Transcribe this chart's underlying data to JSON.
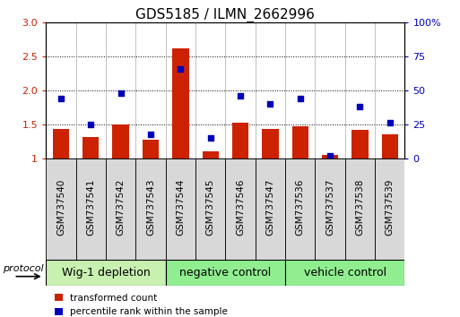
{
  "title": "GDS5185 / ILMN_2662996",
  "samples": [
    "GSM737540",
    "GSM737541",
    "GSM737542",
    "GSM737543",
    "GSM737544",
    "GSM737545",
    "GSM737546",
    "GSM737547",
    "GSM737536",
    "GSM737537",
    "GSM737538",
    "GSM737539"
  ],
  "transformed_count": [
    1.44,
    1.32,
    1.5,
    1.27,
    2.62,
    1.1,
    1.52,
    1.44,
    1.47,
    1.05,
    1.42,
    1.35
  ],
  "percentile_rank": [
    44,
    25,
    48,
    18,
    66,
    15,
    46,
    40,
    44,
    2,
    38,
    26
  ],
  "groups": [
    {
      "label": "Wig-1 depletion",
      "start": 0,
      "end": 4,
      "color": "#c8f0b0"
    },
    {
      "label": "negative control",
      "start": 4,
      "end": 8,
      "color": "#90ee90"
    },
    {
      "label": "vehicle control",
      "start": 8,
      "end": 12,
      "color": "#90ee90"
    }
  ],
  "ylim_left": [
    1.0,
    3.0
  ],
  "ylim_right": [
    0,
    100
  ],
  "yticks_left": [
    1.0,
    1.5,
    2.0,
    2.5,
    3.0
  ],
  "yticks_right": [
    0,
    25,
    50,
    75,
    100
  ],
  "bar_color": "#cc2200",
  "dot_color": "#0000bb",
  "bar_baseline": 1.0,
  "protocol_label": "protocol",
  "legend_bar_label": "transformed count",
  "legend_dot_label": "percentile rank within the sample",
  "title_fontsize": 11,
  "tick_fontsize": 8,
  "group_label_fontsize": 9,
  "sample_fontsize": 7.5,
  "bg_color": "#d8d8d8",
  "plot_bg": "#ffffff",
  "group_border_color": "#000000"
}
